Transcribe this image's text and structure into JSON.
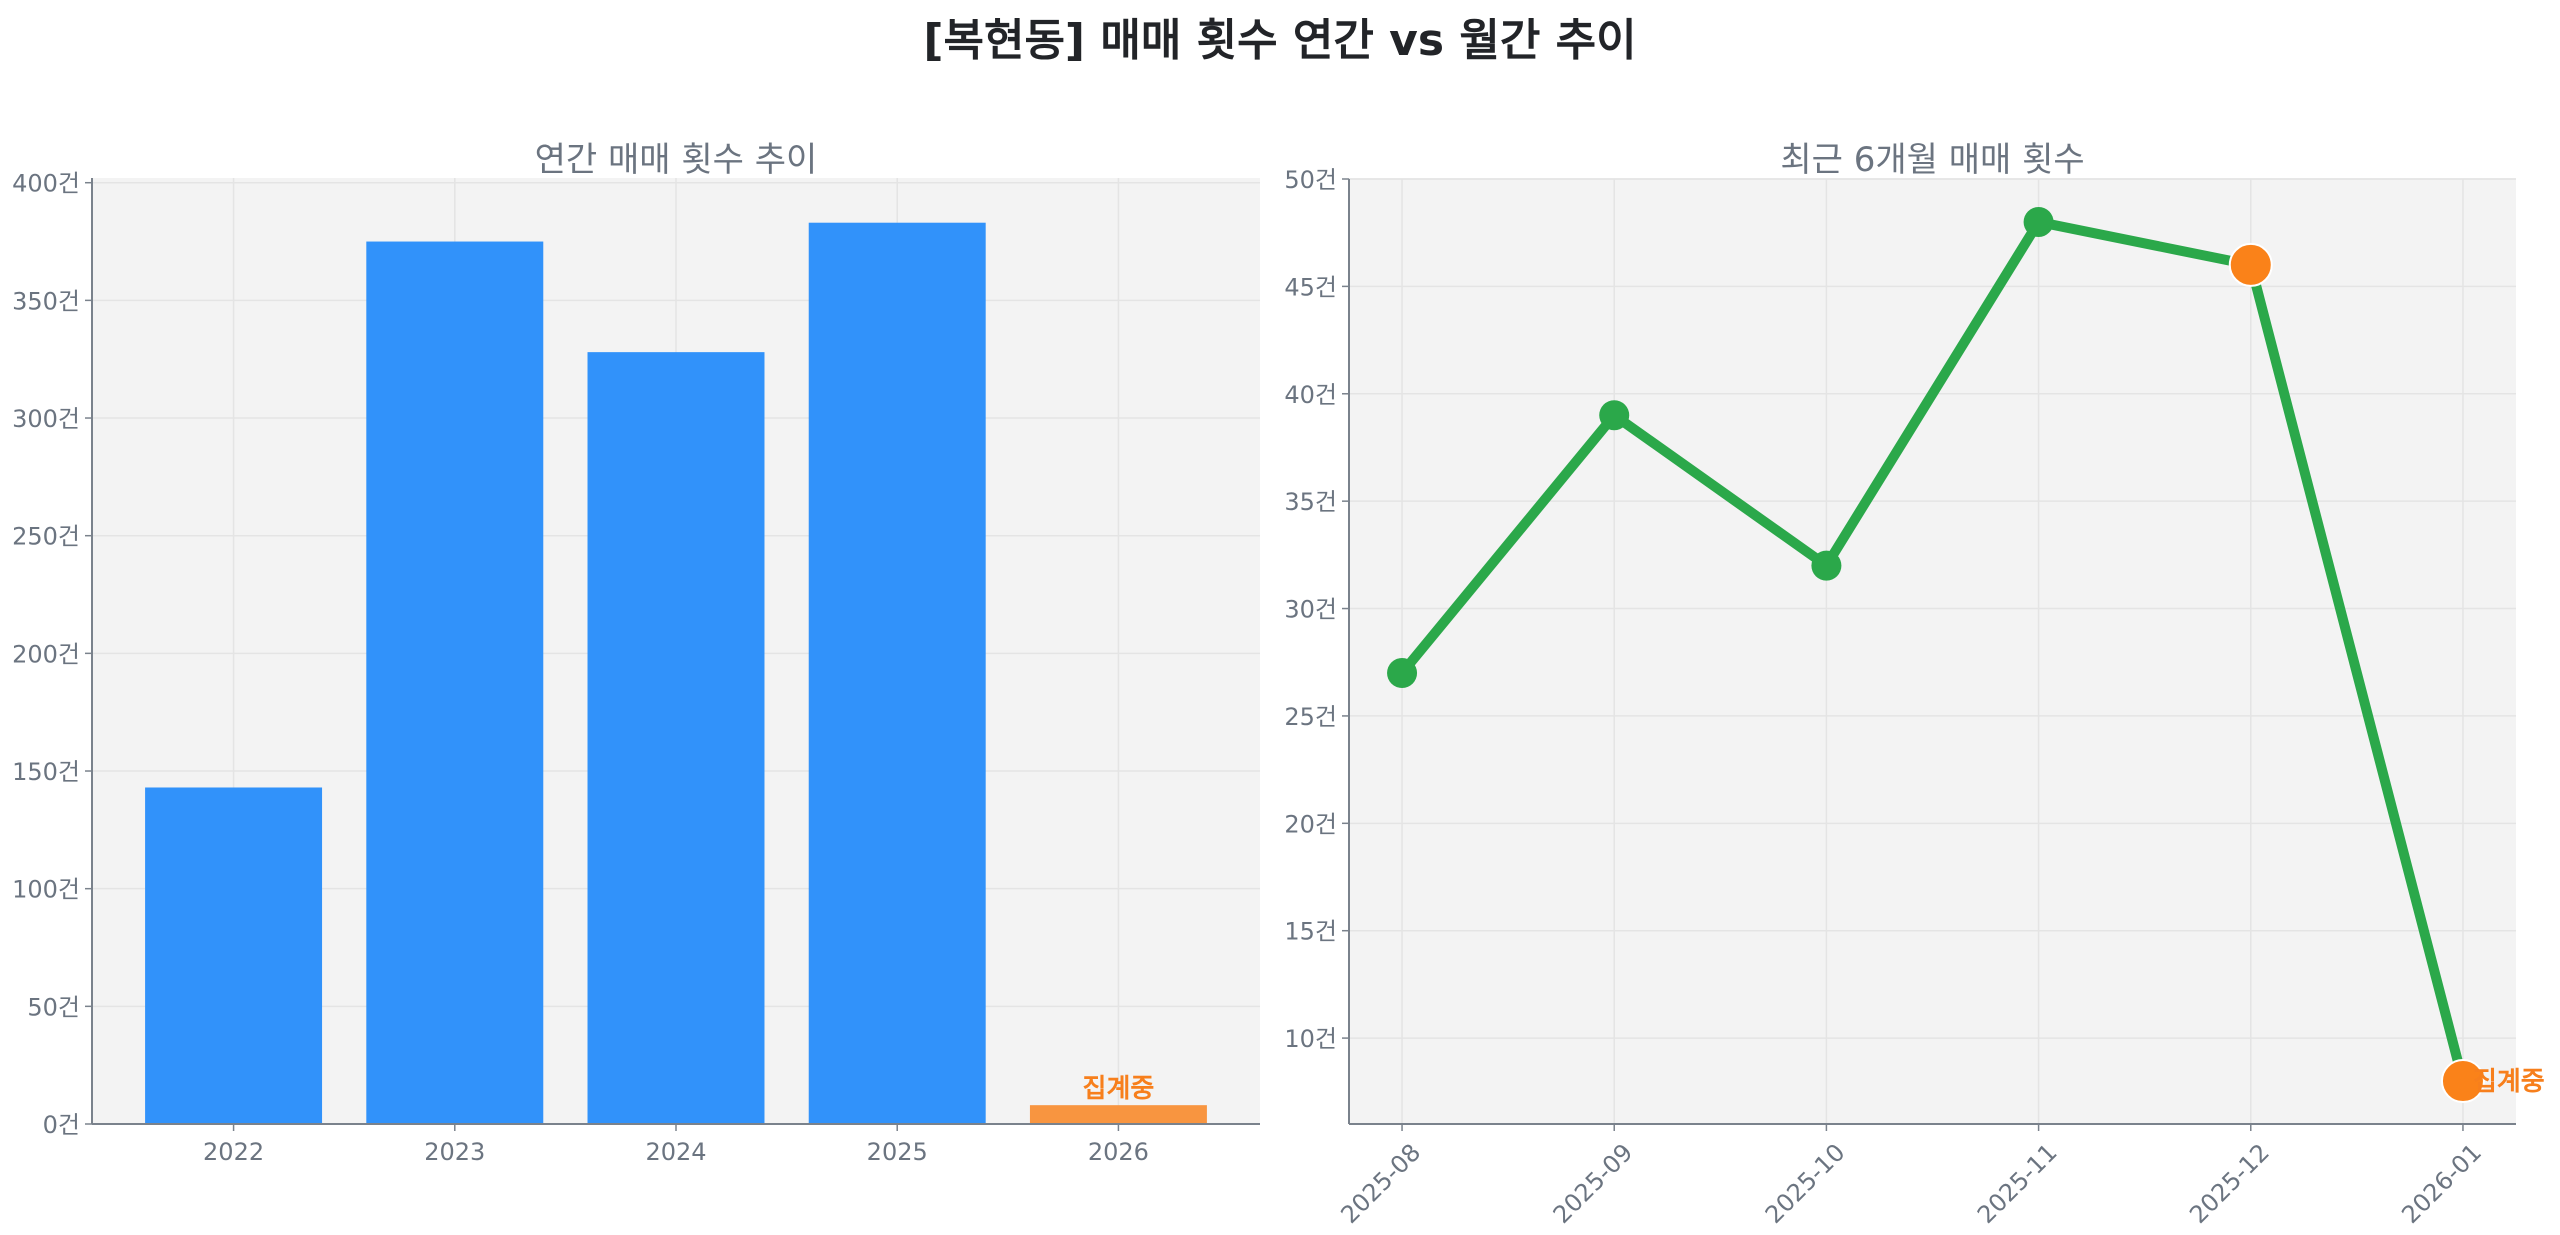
{
  "figure": {
    "title": "[복현동] 매매 횟수 연간 vs 월간 추이"
  },
  "chart_data": [
    {
      "type": "bar",
      "title": "연간 매매 횟수 추이",
      "xlabel": "",
      "ylabel": "",
      "categories": [
        "2022",
        "2023",
        "2024",
        "2025",
        "2026"
      ],
      "values": [
        143,
        375,
        328,
        383,
        8
      ],
      "bar_colors": [
        "#3192fa",
        "#3192fa",
        "#3192fa",
        "#3192fa",
        "#f89540"
      ],
      "annotations": [
        {
          "category": "2026",
          "text": "집계중",
          "color": "#f77f1c"
        }
      ],
      "yticks": [
        0,
        50,
        100,
        150,
        200,
        250,
        300,
        350,
        400
      ],
      "ytick_labels": [
        "0건",
        "50건",
        "100건",
        "150건",
        "200건",
        "250건",
        "300건",
        "350건",
        "400건"
      ],
      "ylim": [
        0,
        402
      ],
      "grid": true,
      "legend": null
    },
    {
      "type": "line",
      "title": "최근 6개월 매매 횟수",
      "xlabel": "",
      "ylabel": "",
      "x": [
        "2025-08",
        "2025-09",
        "2025-10",
        "2025-11",
        "2025-12",
        "2026-01"
      ],
      "series": [
        {
          "name": "매매 횟수",
          "values": [
            27,
            39,
            32,
            48,
            46,
            8
          ],
          "color": "#2ba84a"
        }
      ],
      "highlight_points": [
        {
          "x": "2025-12",
          "value": 46,
          "color": "#fa8219"
        },
        {
          "x": "2026-01",
          "value": 8,
          "color": "#fa8219",
          "label": "집계중"
        }
      ],
      "annotations": [
        {
          "x": "2026-01",
          "text": "집계중",
          "color": "#f77f1c"
        }
      ],
      "yticks": [
        10,
        15,
        20,
        25,
        30,
        35,
        40,
        45,
        50
      ],
      "ytick_labels": [
        "10건",
        "15건",
        "20건",
        "25건",
        "30건",
        "35건",
        "40건",
        "45건",
        "50건"
      ],
      "ylim": [
        6,
        50
      ],
      "xtick_rotation": 45,
      "grid": true,
      "legend": null
    }
  ]
}
